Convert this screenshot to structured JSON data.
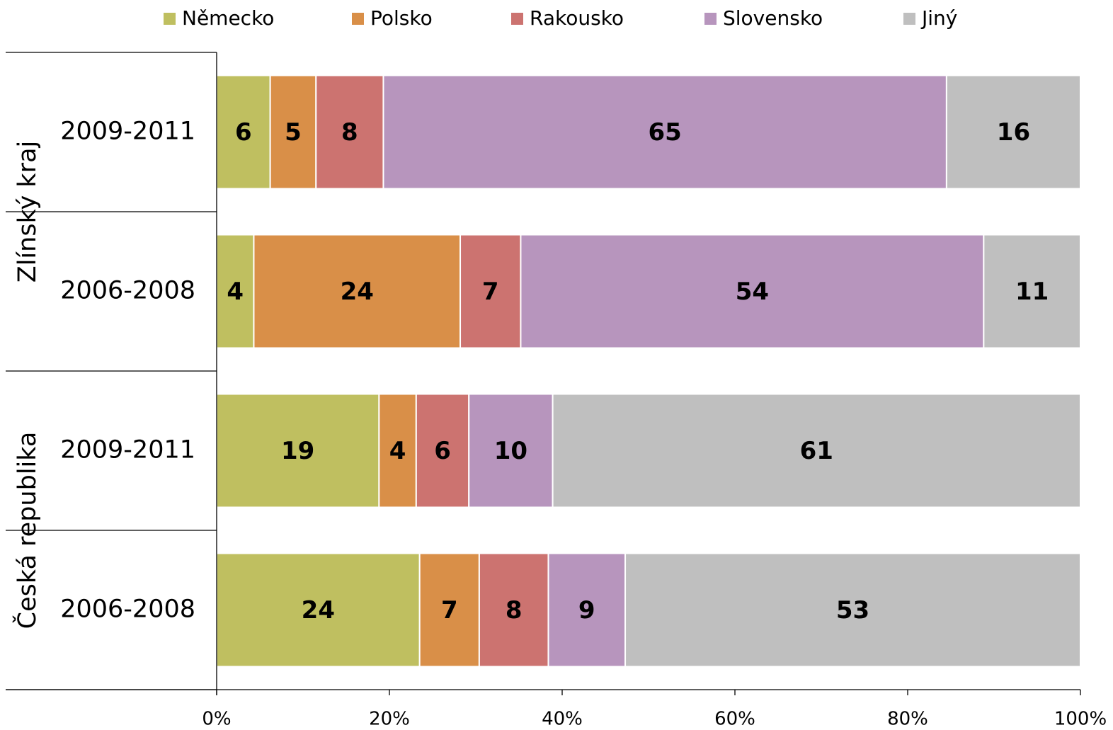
{
  "chart_data": {
    "type": "stacked-barh",
    "groups": [
      "Zlínský kraj",
      "Česká republika"
    ],
    "categories": [
      "2009-2011",
      "2006-2008",
      "2009-2011",
      "2006-2008"
    ],
    "series": [
      {
        "name": "Německo",
        "color": "#bfbf60",
        "values": [
          6.2,
          4.3,
          18.8,
          23.5
        ],
        "value_labels": [
          "6",
          "4",
          "19",
          "24"
        ]
      },
      {
        "name": "Polsko",
        "color": "#d98f48",
        "values": [
          5.3,
          23.9,
          4.3,
          6.9
        ],
        "value_labels": [
          "5",
          "24",
          "4",
          "7"
        ]
      },
      {
        "name": "Rakousko",
        "color": "#cc7370",
        "values": [
          7.8,
          7.0,
          6.1,
          8.0
        ],
        "value_labels": [
          "8",
          "7",
          "6",
          "8"
        ]
      },
      {
        "name": "Slovensko",
        "color": "#b795bd",
        "values": [
          65.2,
          53.6,
          9.7,
          8.9
        ],
        "value_labels": [
          "65",
          "54",
          "10",
          "9"
        ]
      },
      {
        "name": "Jiný",
        "color": "#bfbfbf",
        "values": [
          15.5,
          11.2,
          61.1,
          52.7
        ],
        "value_labels": [
          "16",
          "11",
          "61",
          "53"
        ]
      }
    ],
    "xlim": [
      0,
      100
    ],
    "xticks": [
      {
        "value": 0,
        "label": "0%"
      },
      {
        "value": 20,
        "label": "20%"
      },
      {
        "value": 40,
        "label": "40%"
      },
      {
        "value": 60,
        "label": "60%"
      },
      {
        "value": 80,
        "label": "80%"
      },
      {
        "value": 100,
        "label": "100%"
      }
    ],
    "legend": "top"
  }
}
